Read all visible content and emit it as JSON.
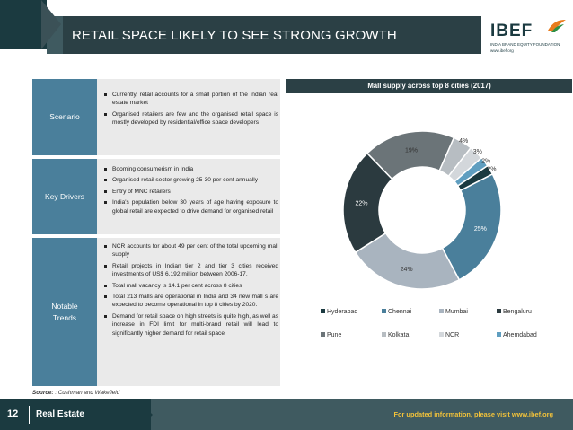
{
  "header": {
    "title": "RETAIL SPACE LIKELY TO SEE STRONG GROWTH",
    "logo_text": "IBEF",
    "logo_tagline": "INDIA BRAND EQUITY FOUNDATION",
    "logo_url": "www.ibef.org"
  },
  "sections": [
    {
      "label": "Scenario",
      "bullets": [
        "Currently, retail accounts for a small portion of the Indian real estate market",
        "Organised retailers are few and the organised retail space is mostly developed by residential/office space developers"
      ]
    },
    {
      "label": "Key Drivers",
      "bullets": [
        "Booming consumerism in India",
        "Organised retail sector growing 25-30 per cent annually",
        "Entry of MNC retailers",
        "India's population below 30 years of age having exposure to global retail are expected to drive demand for organised retail"
      ]
    },
    {
      "label": "Notable Trends",
      "bullets": [
        "NCR accounts for about 49 per cent of the total upcoming mall supply",
        "Retail projects in Indian tier 2  and tier 3 cities received investments of US$ 6,192 million between 2006-17.",
        "Total mall vacancy is 14.1 per cent across 8 cities",
        "Total 213 malls are operational in India and 34 new mall s are expected to become operational in top 8 cities by 2020.",
        "Demand for retail space on high streets is quite high, as well as increase in FDI limit for multi-brand retail will lead to significantly higher demand for retail space"
      ]
    }
  ],
  "chart_data": {
    "type": "pie",
    "title": "Mall supply across top 8 cities (2017)",
    "categories": [
      "Hyderabad",
      "Chennai",
      "Mumbai",
      "Bengaluru",
      "Pune",
      "Kolkata",
      "NCR",
      "Ahemdabad"
    ],
    "values": [
      2,
      25,
      24,
      22,
      19,
      4,
      3,
      2
    ],
    "value_labels": [
      "2%",
      "25%",
      "24%",
      "22%",
      "19%",
      "4%",
      "3%",
      "2%"
    ],
    "unit": "%",
    "legend_position": "bottom",
    "colors": [
      "#4a7f9b",
      "#1b3a40",
      "#4a7f9b",
      "#a9b4bf",
      "#2b3a3f",
      "#6b7478",
      "#b7bdc2",
      "#5f9ec0"
    ],
    "legend_colors": [
      "#1b3a40",
      "#4a7f9b",
      "#a9b4bf",
      "#2b3a3f",
      "#6b7478",
      "#b7bdc2",
      "#d3d7db",
      "#5f9ec0"
    ]
  },
  "source": {
    "label": "Source:",
    "text": ": Cushman and Wakefield"
  },
  "footer": {
    "page_number": "12",
    "sector": "Real Estate",
    "link_text": "For updated information, please visit www.ibef.org"
  },
  "colors": {
    "dark_teal": "#1b3a40",
    "title_band": "#2b4045",
    "label_blue": "#4a7f9b",
    "bullet_bg": "#eaeaea",
    "footer_link": "#f2c23a"
  }
}
